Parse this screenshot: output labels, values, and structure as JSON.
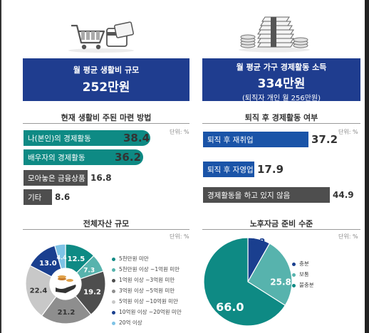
{
  "left": {
    "panel": {
      "line1": "월 평균 생활비 규모",
      "big": "252만원"
    },
    "bars_title": "현재 생활비 주된 마련 방법",
    "unit": "단위: %",
    "bars": [
      {
        "label": "나(본인)의 경제활동",
        "value": "38.4"
      },
      {
        "label": "배우자의 경제활동",
        "value": "36.2"
      },
      {
        "label": "모아놓은 금융상품",
        "value": "16.8"
      },
      {
        "label": "기타",
        "value": "8.6"
      }
    ],
    "donut_title": "전체자산 규모",
    "donut_unit": "단위: %",
    "legend": [
      "5천만원 미만",
      "5천만원 이상 ~1억원 미만",
      "1억원 이상 ~3억원 미만",
      "3억원 이상 ~5억원 미만",
      "5억원 이상 ~10억원 미만",
      "10억원 이상 ~20억원 미만",
      "20억 이상"
    ]
  },
  "right": {
    "panel": {
      "line1": "월 평균 가구 경제활동 소득",
      "big": "334만원",
      "line3": "(퇴직자 개인 월 256만원)"
    },
    "bars_title": "퇴직 후 경제활동 여부",
    "unit": "단위: %",
    "bars": [
      {
        "label": "퇴직 후 재취업",
        "value": "37.2"
      },
      {
        "label": "퇴직 후 자영업",
        "value": "17.9"
      },
      {
        "label": "경제활동을 하고 있지 않음",
        "value": "44.9"
      }
    ],
    "donut_title": "노후자금 준비 수준",
    "donut_unit": "단위: %",
    "legend": [
      "충분",
      "보통",
      "불충분"
    ]
  },
  "colors": {
    "navy": "#1f3d8f",
    "teal": "#0e8a84",
    "dark_gray": "#4e4e4e",
    "blue": "#1a54a8",
    "light_teal": "#57b3ad"
  },
  "chart_data": [
    {
      "type": "bar",
      "title": "현재 생활비 주된 마련 방법",
      "categories": [
        "나(본인)의 경제활동",
        "배우자의 경제활동",
        "모아놓은 금융상품",
        "기타"
      ],
      "values": [
        38.4,
        36.2,
        16.8,
        8.6
      ]
    },
    {
      "type": "bar",
      "title": "퇴직 후 경제활동 여부",
      "categories": [
        "퇴직 후 재취업",
        "퇴직 후 자영업",
        "경제활동을 하고 있지 않음"
      ],
      "values": [
        37.2,
        17.9,
        44.9
      ]
    },
    {
      "type": "pie",
      "title": "전체자산 규모",
      "categories": [
        "5천만원 미만",
        "5천만원 이상 ~1억원 미만",
        "1억원 이상 ~3억원 미만",
        "3억원 이상 ~5억원 미만",
        "5억원 이상 ~10억원 미만",
        "10억원 이상 ~20억원 미만",
        "20억 이상"
      ],
      "values": [
        12.5,
        7.3,
        19.2,
        21.2,
        22.4,
        13.0,
        4.4
      ],
      "labels": [
        "12.5",
        "7.3",
        "19.2",
        "21.2",
        "22.4",
        "13.0",
        "4.4"
      ],
      "colors": [
        "#0e8a84",
        "#57b3ad",
        "#4e4e4e",
        "#8e8e8e",
        "#c8c8c8",
        "#1a3f8f",
        "#7ec3e6"
      ]
    },
    {
      "type": "pie",
      "title": "노후자금 준비 수준",
      "categories": [
        "충분",
        "보통",
        "불충분"
      ],
      "values": [
        8.2,
        25.8,
        66.0
      ],
      "labels": [
        "8.2",
        "25.8",
        "66.0"
      ],
      "colors": [
        "#1a3f8f",
        "#57b3ad",
        "#0e8a84"
      ]
    }
  ]
}
